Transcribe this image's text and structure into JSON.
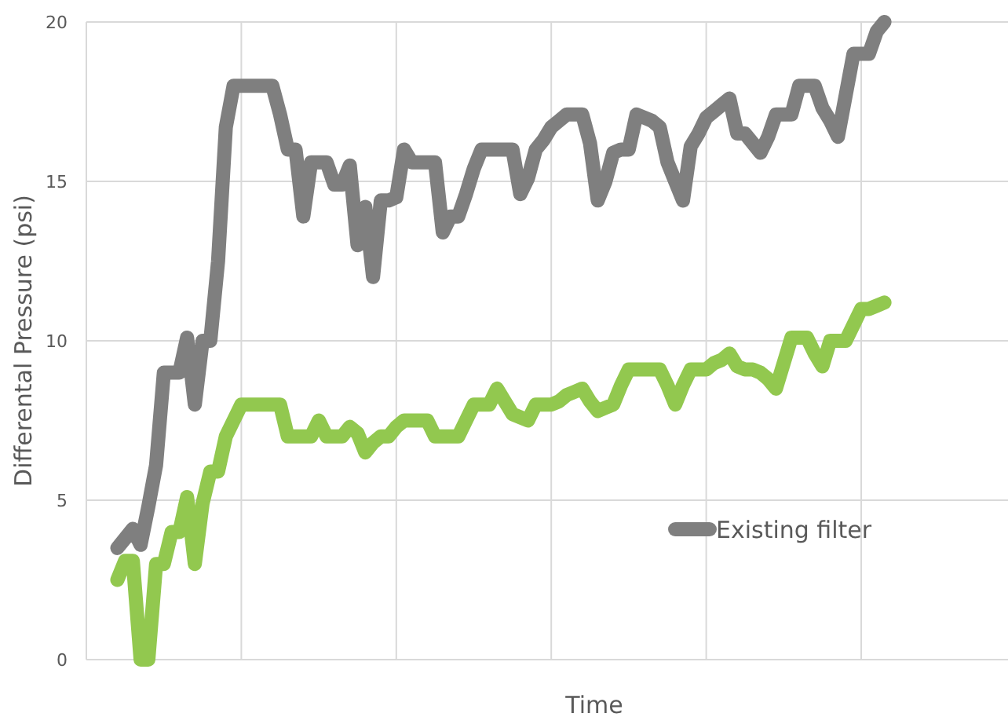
{
  "chart_data": {
    "type": "line",
    "xlabel": "Time",
    "ylabel": "Differental Pressure (psi)",
    "categories": [
      null,
      null,
      null,
      null,
      null,
      null,
      null,
      null,
      null,
      null,
      null,
      null,
      null,
      null,
      null,
      null,
      null,
      null,
      null,
      null,
      null,
      null,
      null,
      null,
      null,
      null,
      null,
      null,
      null,
      null,
      null,
      null,
      null,
      null,
      null,
      null,
      null,
      null,
      null,
      null,
      null,
      null,
      null,
      null,
      null,
      null,
      null,
      null,
      null,
      null,
      null,
      null,
      null,
      null,
      null,
      null,
      null,
      null,
      null,
      null,
      null,
      null,
      null,
      null,
      null,
      null,
      null,
      null,
      null,
      null,
      null,
      null,
      null,
      null,
      null,
      null,
      null,
      null,
      null,
      null,
      null,
      null,
      null,
      null,
      null,
      null,
      null,
      null,
      null,
      null,
      null,
      null,
      null,
      null,
      null,
      null,
      null,
      null,
      null,
      null,
      null,
      null,
      null,
      null
    ],
    "ylim": [
      0,
      20
    ],
    "yticks": [
      0,
      5,
      10,
      15,
      20
    ],
    "grid": true,
    "legend": "bottom right",
    "marker": "none",
    "line_style": "solid",
    "series": [
      {
        "name": "Existing filter",
        "color": "#7f7f7f",
        "values": [
          null,
          null,
          null,
          null,
          3.5,
          3.8,
          4.1,
          3.6,
          4.8,
          6.1,
          9,
          9,
          9,
          10.1,
          8,
          10,
          10,
          12.5,
          16.7,
          18,
          18,
          18,
          18,
          18,
          18,
          17.1,
          16,
          16,
          13.9,
          15.6,
          15.6,
          15.6,
          14.9,
          14.9,
          15.5,
          13,
          14.2,
          12,
          14.4,
          14.4,
          14.5,
          16,
          15.6,
          15.6,
          15.6,
          15.6,
          13.4,
          13.9,
          13.9,
          14.6,
          15.4,
          16,
          16,
          16,
          16,
          16,
          14.6,
          15.1,
          16,
          16.3,
          16.7,
          16.9,
          17.1,
          17.1,
          17.1,
          16.2,
          14.4,
          15,
          15.9,
          16,
          16,
          17.1,
          17,
          16.9,
          16.7,
          15.6,
          15,
          14.4,
          16.1,
          16.5,
          17,
          17.2,
          17.4,
          17.6,
          16.5,
          16.5,
          16.2,
          15.9,
          16.4,
          17.1,
          17.1,
          17.1,
          18,
          18,
          18,
          17.3,
          16.9,
          16.4,
          17.7,
          19,
          19,
          19,
          19.7,
          20
        ]
      },
      {
        "color": "#92c84f",
        "values": [
          null,
          null,
          null,
          null,
          2.5,
          3.1,
          3.1,
          0,
          0,
          3,
          3,
          4,
          4,
          5.1,
          3,
          4.9,
          5.9,
          5.9,
          7,
          7.5,
          8,
          8,
          8,
          8,
          8,
          8,
          7,
          7,
          7,
          7,
          7.5,
          7,
          7,
          7,
          7.3,
          7.1,
          6.5,
          6.8,
          7,
          7,
          7.3,
          7.5,
          7.5,
          7.5,
          7.5,
          7,
          7,
          7,
          7,
          7.5,
          8,
          8,
          8,
          8.5,
          8.1,
          7.7,
          7.6,
          7.5,
          8,
          8,
          8,
          8.1,
          8.3,
          8.4,
          8.5,
          8.1,
          7.8,
          7.9,
          8,
          8.6,
          9.1,
          9.1,
          9.1,
          9.1,
          9.1,
          8.6,
          8,
          8.6,
          9.1,
          9.1,
          9.1,
          9.3,
          9.4,
          9.6,
          9.2,
          9.1,
          9.1,
          9,
          8.8,
          8.5,
          9.3,
          10.1,
          10.1,
          10.1,
          9.6,
          9.2,
          10,
          10,
          10,
          10.5,
          11,
          11,
          11.1,
          11.2
        ]
      }
    ]
  }
}
